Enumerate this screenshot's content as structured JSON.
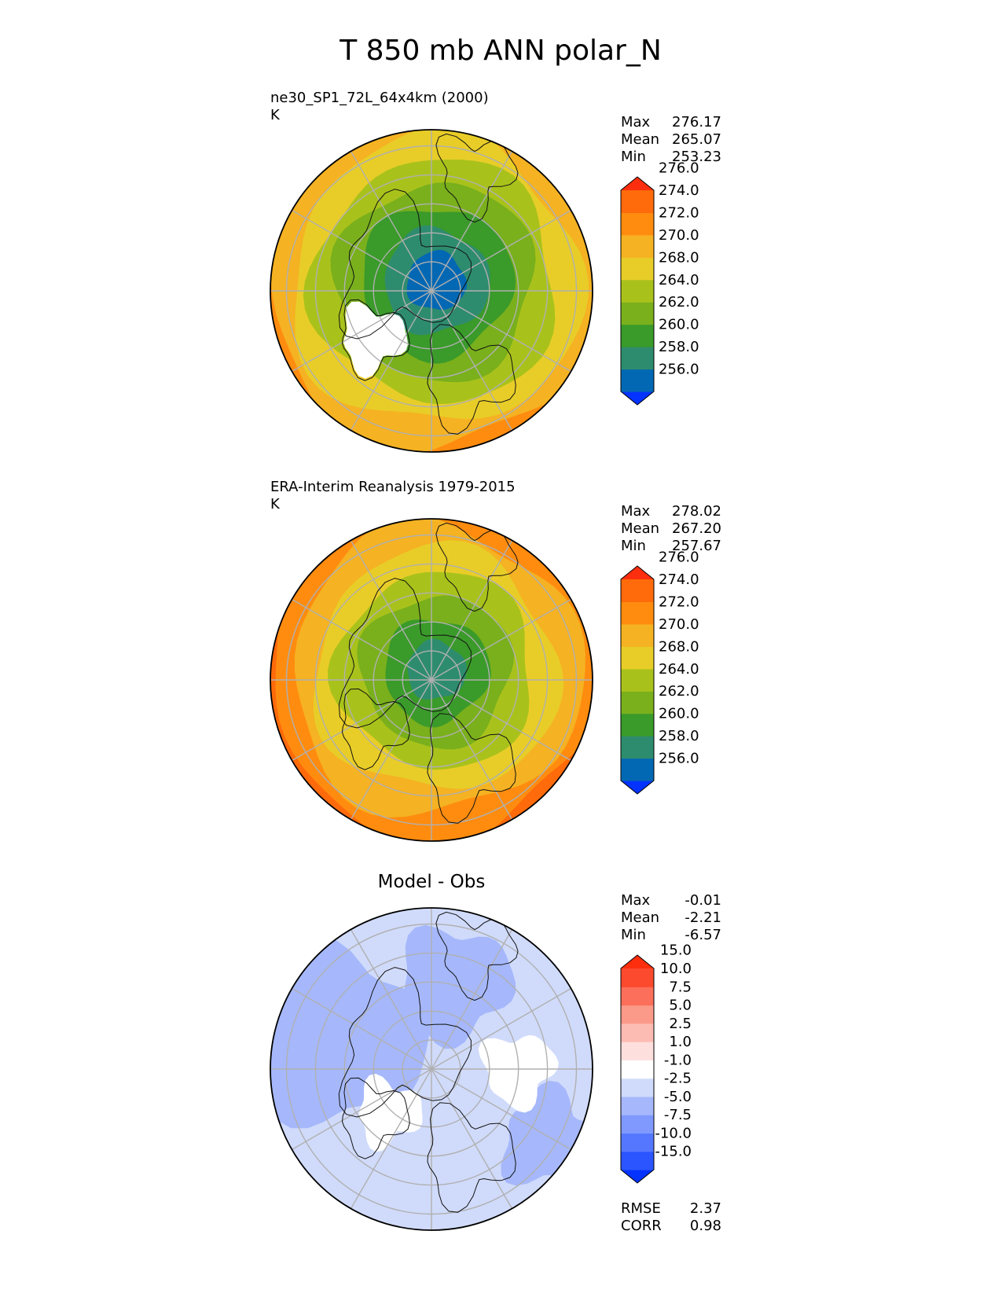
{
  "figure_title": "T 850 mb ANN polar_N",
  "chart_data": [
    {
      "type": "polar-contour-map",
      "title": "ne30_SP1_72L_64x4km (2000)",
      "units": "K",
      "stats": [
        {
          "label": "Max",
          "value": "276.17"
        },
        {
          "label": "Mean",
          "value": "265.07"
        },
        {
          "label": "Min",
          "value": "253.23"
        }
      ],
      "colorbar": {
        "levels": [
          "256.0",
          "258.0",
          "260.0",
          "262.0",
          "264.0",
          "268.0",
          "270.0",
          "272.0",
          "274.0",
          "276.0"
        ],
        "colors": [
          "#0433ff",
          "#0368b3",
          "#2e8c6e",
          "#3a9a2a",
          "#79b01c",
          "#a9c21b",
          "#e8cd28",
          "#f5b222",
          "#ff8c0f",
          "#ff6a0a",
          "#fc2e0e"
        ]
      }
    },
    {
      "type": "polar-contour-map",
      "title": "ERA-Interim Reanalysis 1979-2015",
      "units": "K",
      "stats": [
        {
          "label": "Max",
          "value": "278.02"
        },
        {
          "label": "Mean",
          "value": "267.20"
        },
        {
          "label": "Min",
          "value": "257.67"
        }
      ],
      "colorbar": {
        "levels": [
          "256.0",
          "258.0",
          "260.0",
          "262.0",
          "264.0",
          "268.0",
          "270.0",
          "272.0",
          "274.0",
          "276.0"
        ],
        "colors": [
          "#0433ff",
          "#0368b3",
          "#2e8c6e",
          "#3a9a2a",
          "#79b01c",
          "#a9c21b",
          "#e8cd28",
          "#f5b222",
          "#ff8c0f",
          "#ff6a0a",
          "#fc2e0e"
        ]
      }
    },
    {
      "type": "polar-contour-map",
      "title": "Model - Obs",
      "units": "",
      "stats": [
        {
          "label": "Max",
          "value": "-0.01"
        },
        {
          "label": "Mean",
          "value": "-2.21"
        },
        {
          "label": "Min",
          "value": "-6.57"
        }
      ],
      "bottom_stats": [
        {
          "label": "RMSE",
          "value": "2.37"
        },
        {
          "label": "CORR",
          "value": "0.98"
        }
      ],
      "colorbar": {
        "levels": [
          "-15.0",
          "-10.0",
          "-7.5",
          "-5.0",
          "-2.5",
          "-1.0",
          "1.0",
          "2.5",
          "5.0",
          "7.5",
          "10.0",
          "15.0"
        ],
        "colors": [
          "#0433ff",
          "#2a55ff",
          "#5577ff",
          "#7f99ff",
          "#a6b8fb",
          "#d0dbfb",
          "#ffffff",
          "#fde0dd",
          "#fdbcb3",
          "#fc9a89",
          "#fc6f5a",
          "#fb4a2e",
          "#fc2e0e"
        ]
      }
    }
  ]
}
